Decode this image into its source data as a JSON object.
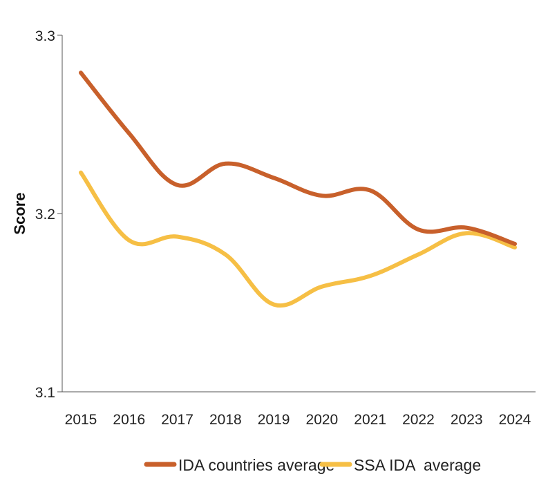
{
  "chart_data": {
    "type": "line",
    "title": "",
    "xlabel": "",
    "ylabel": "Score",
    "x": [
      "2015",
      "2016",
      "2017",
      "2018",
      "2019",
      "2020",
      "2021",
      "2022",
      "2023",
      "2024"
    ],
    "yticks": [
      "3.1",
      "3.2",
      "3.3"
    ],
    "ylim": [
      3.1,
      3.3
    ],
    "grid": false,
    "legend_position": "bottom",
    "series": [
      {
        "name": "IDA countries average",
        "color": "#C8602B",
        "values": [
          3.279,
          3.245,
          3.216,
          3.228,
          3.22,
          3.21,
          3.213,
          3.191,
          3.192,
          3.183
        ]
      },
      {
        "name": "SSA IDA  average",
        "color": "#F6BF45",
        "values": [
          3.223,
          3.185,
          3.187,
          3.177,
          3.149,
          3.159,
          3.165,
          3.177,
          3.189,
          3.181
        ]
      }
    ]
  }
}
